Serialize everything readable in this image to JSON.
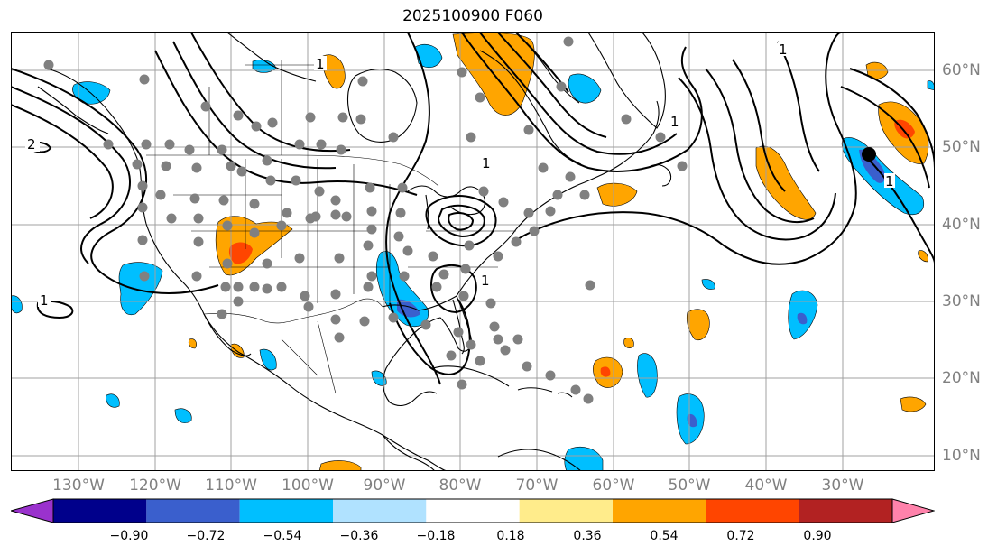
{
  "title": "2025100900 F060",
  "lon_labels": [
    "130°W",
    "120°W",
    "110°W",
    "100°W",
    "90°W",
    "80°W",
    "70°W",
    "60°W",
    "50°W",
    "40°W",
    "30°W"
  ],
  "lat_labels": [
    "60°N",
    "50°N",
    "40°N",
    "30°N",
    "20°N",
    "10°N"
  ],
  "contour_labels": [
    "1",
    "2",
    "1",
    "1",
    "1",
    "1",
    "1",
    "1"
  ],
  "colorbar": {
    "labels": [
      "−0.90",
      "−0.72",
      "−0.54",
      "−0.36",
      "−0.18",
      "0.18",
      "0.36",
      "0.54",
      "0.72",
      "0.90"
    ],
    "colors": [
      "#9a32cd",
      "#00008b",
      "#3a5fcd",
      "#00bfff",
      "#b0e2ff",
      "#ffffff",
      "#ffec8b",
      "#ffa500",
      "#ff4500",
      "#b22222",
      "#ff82ab"
    ]
  },
  "colors": {
    "grid": "#a0a0a0",
    "coast": "#000000",
    "stations": "#808080",
    "marker": "#000000",
    "contour": "#000000",
    "tick_labels": "#808080"
  }
}
